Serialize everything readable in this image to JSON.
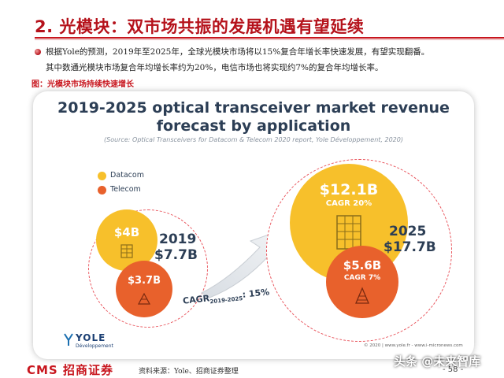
{
  "header": {
    "title": "2. 光模块：双市场共振的发展机遇有望延续"
  },
  "body": {
    "line1": "根据Yole的预测，2019年至2025年，全球光模块市场将以15%复合年增长率快速发展，有望实现翻番。",
    "line2": "其中数通光模块市场复合年均增长率约为20%，电信市场也将实现约7%的复合年均增长率。"
  },
  "figure": {
    "caption": "图：光模块市场持续快速增长",
    "title_line1": "2019-2025 optical transceiver market revenue",
    "title_line2": "forecast by application",
    "source": "(Source: Optical Transceivers for Datacom & Telecom 2020 report, Yole Développement, 2020)",
    "legend": [
      {
        "label": "Datacom",
        "color": "#f7c02b"
      },
      {
        "label": "Telecom",
        "color": "#e8612c"
      }
    ],
    "y2019": {
      "year": "2019",
      "total": "$7.7B",
      "datacom": "$4B",
      "telecom": "$3.7B"
    },
    "y2025": {
      "year": "2025",
      "total": "$17.7B",
      "datacom": "$12.1B",
      "datacom_cagr": "CAGR 20%",
      "telecom": "$5.6B",
      "telecom_cagr": "CAGR 7%"
    },
    "cagr_label": "CAGR",
    "cagr_sub": "2019-2025",
    "cagr_value": ": 15%",
    "logo_text": "YOLE",
    "logo_sub": "Développement",
    "copyright": "© 2020 | www.yole.fr - www.i-micronews.com"
  },
  "footer": {
    "logo": "CMS 招商证券",
    "source": "资料来源：Yole、招商证券整理",
    "page": "- 58 -",
    "watermark": "头条 @未来智库"
  }
}
